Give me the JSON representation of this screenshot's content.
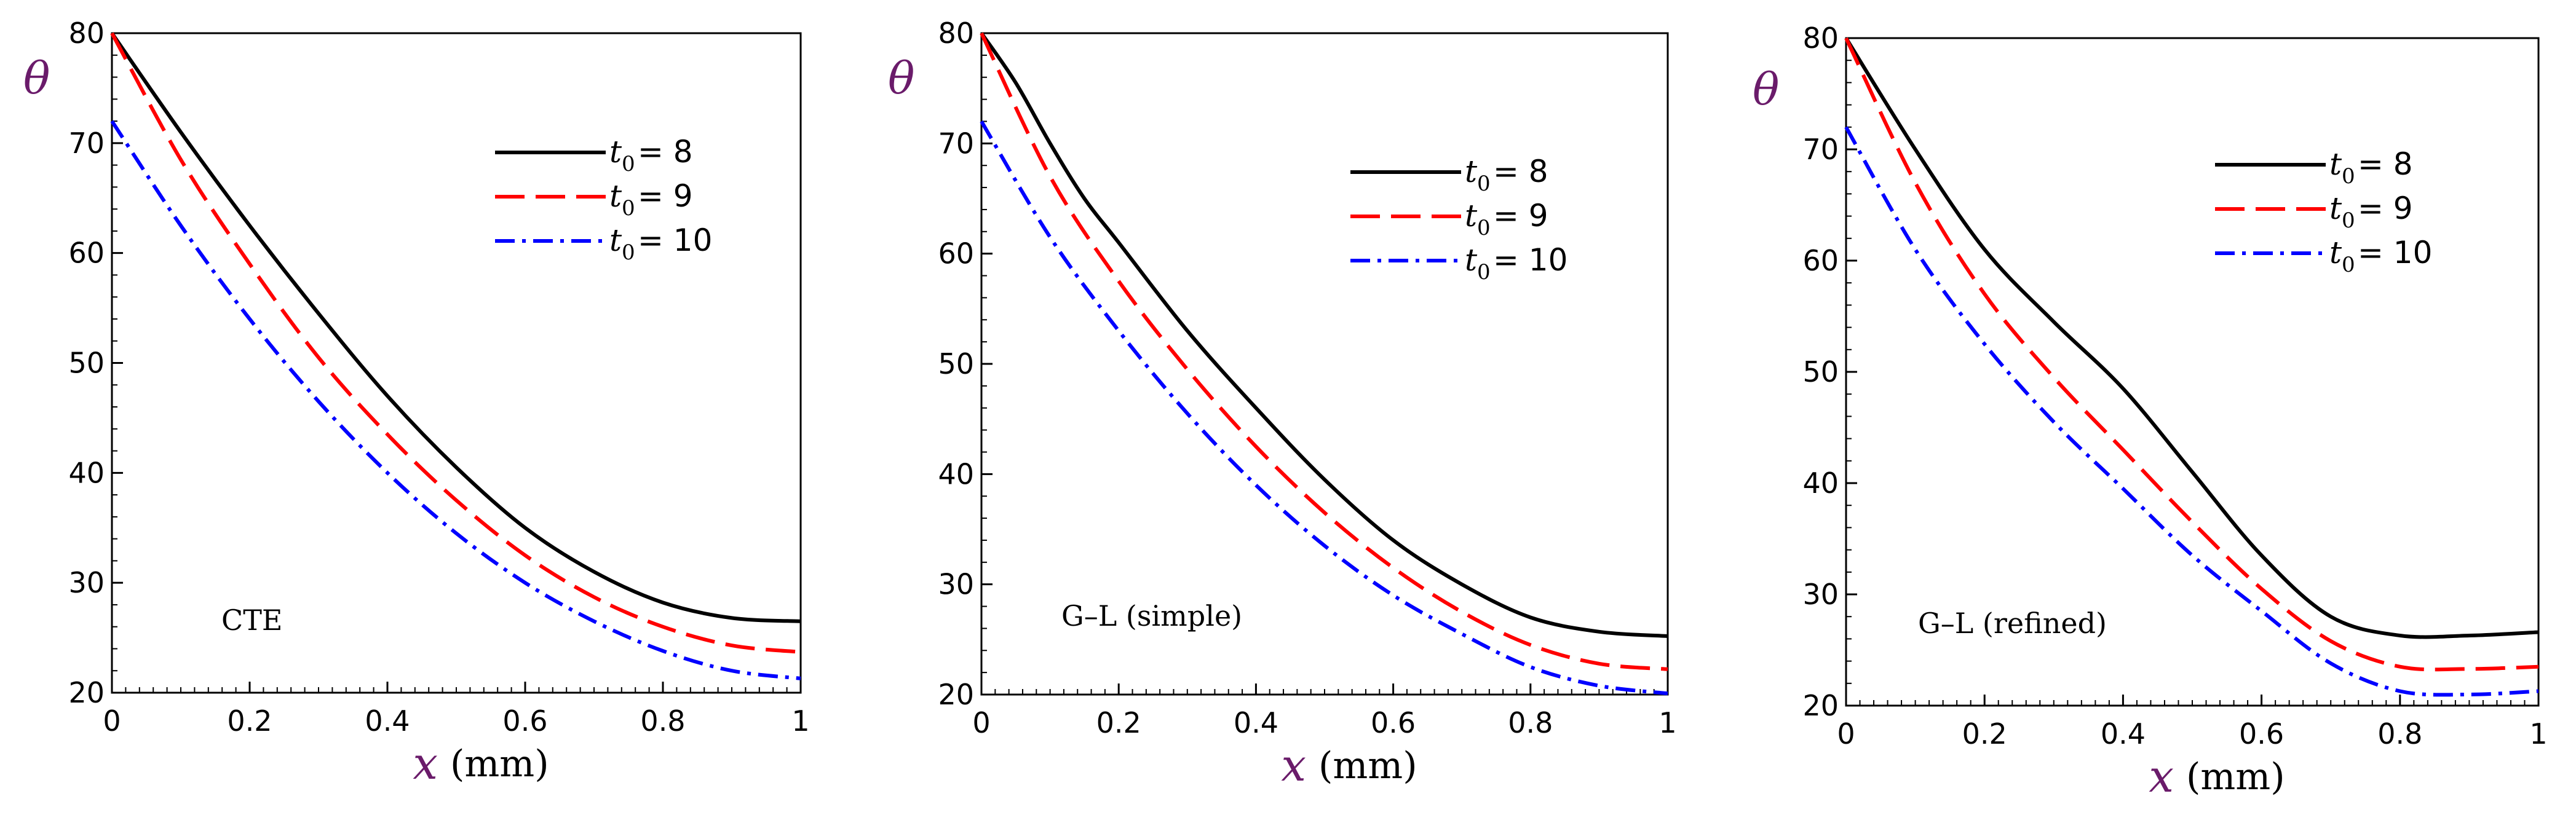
{
  "chart_data": [
    {
      "type": "line",
      "annotation": "CTE",
      "xlabel": {
        "var": "x",
        "unit": "(mm)"
      },
      "ylabel": "θ",
      "xlim": [
        0,
        1
      ],
      "ylim": [
        20,
        80
      ],
      "xticks": [
        "0",
        "0.2",
        "0.4",
        "0.6",
        "0.8",
        "1"
      ],
      "yticks": [
        "20",
        "30",
        "40",
        "50",
        "60",
        "70",
        "80"
      ],
      "legend_position": "top-right",
      "series": [
        {
          "name": "t0 = 8",
          "t": "t",
          "sub": "0",
          "eq": "= 8",
          "color": "#000000",
          "dash": "solid",
          "x": [
            0,
            0.1,
            0.2,
            0.3,
            0.4,
            0.5,
            0.6,
            0.7,
            0.8,
            0.9,
            1.0
          ],
          "y": [
            80,
            71,
            62.5,
            54.5,
            47,
            40.5,
            35,
            31,
            28.2,
            26.8,
            26.5
          ]
        },
        {
          "name": "t0 = 9",
          "t": "t",
          "sub": "0",
          "eq": "= 9",
          "color": "#ff0000",
          "dash": "dash",
          "x": [
            0,
            0.1,
            0.2,
            0.3,
            0.4,
            0.5,
            0.6,
            0.7,
            0.8,
            0.9,
            1.0
          ],
          "y": [
            80,
            68.5,
            59,
            50.5,
            43.5,
            37.5,
            32.5,
            28.7,
            26,
            24.3,
            23.7
          ]
        },
        {
          "name": "t0 = 10",
          "t": "t",
          "sub": "0",
          "eq": "= 10",
          "color": "#0000ff",
          "dash": "dashdot",
          "x": [
            0,
            0.1,
            0.2,
            0.3,
            0.4,
            0.5,
            0.6,
            0.7,
            0.8,
            0.9,
            1.0
          ],
          "y": [
            72,
            62.5,
            54,
            46.5,
            40,
            34.5,
            30,
            26.5,
            23.8,
            22,
            21.3
          ]
        }
      ]
    },
    {
      "type": "line",
      "annotation": "G–L (simple)",
      "xlabel": {
        "var": "x",
        "unit": "(mm)"
      },
      "ylabel": "θ",
      "xlim": [
        0,
        1
      ],
      "ylim": [
        20,
        80
      ],
      "xticks": [
        "0",
        "0.2",
        "0.4",
        "0.6",
        "0.8",
        "1"
      ],
      "yticks": [
        "20",
        "30",
        "40",
        "50",
        "60",
        "70",
        "80"
      ],
      "legend_position": "top-right",
      "series": [
        {
          "name": "t0 = 8",
          "t": "t",
          "sub": "0",
          "eq": "= 8",
          "color": "#000000",
          "dash": "solid",
          "x": [
            0,
            0.05,
            0.1,
            0.15,
            0.2,
            0.3,
            0.4,
            0.5,
            0.6,
            0.7,
            0.8,
            0.9,
            1.0
          ],
          "y": [
            80,
            75.5,
            70,
            65,
            61,
            53,
            46,
            39.5,
            34,
            30,
            27,
            25.7,
            25.3
          ]
        },
        {
          "name": "t0 = 9",
          "t": "t",
          "sub": "0",
          "eq": "= 9",
          "color": "#ff0000",
          "dash": "dash",
          "x": [
            0,
            0.1,
            0.2,
            0.3,
            0.4,
            0.5,
            0.6,
            0.7,
            0.8,
            0.9,
            1.0
          ],
          "y": [
            80,
            67,
            57.5,
            49.5,
            42.5,
            36.5,
            31.5,
            27.5,
            24.5,
            22.8,
            22.3
          ]
        },
        {
          "name": "t0 = 10",
          "t": "t",
          "sub": "0",
          "eq": "= 10",
          "color": "#0000ff",
          "dash": "dashdot",
          "x": [
            0,
            0.1,
            0.2,
            0.3,
            0.4,
            0.5,
            0.6,
            0.7,
            0.8,
            0.9,
            1.0
          ],
          "y": [
            72,
            61.5,
            53,
            45.5,
            39,
            33.5,
            29,
            25.5,
            22.5,
            20.8,
            20.1
          ]
        }
      ]
    },
    {
      "type": "line",
      "annotation": "G–L (refined)",
      "xlabel": {
        "var": "x",
        "unit": "(mm)"
      },
      "ylabel": "θ",
      "xlim": [
        0,
        1
      ],
      "ylim": [
        20,
        80
      ],
      "xticks": [
        "0",
        "0.2",
        "0.4",
        "0.6",
        "0.8",
        "1"
      ],
      "yticks": [
        "20",
        "30",
        "40",
        "50",
        "60",
        "70",
        "80"
      ],
      "legend_position": "top-right",
      "series": [
        {
          "name": "t0 = 8",
          "t": "t",
          "sub": "0",
          "eq": "= 8",
          "color": "#000000",
          "dash": "solid",
          "x": [
            0,
            0.1,
            0.2,
            0.3,
            0.4,
            0.5,
            0.6,
            0.7,
            0.8,
            0.9,
            1.0
          ],
          "y": [
            80,
            70,
            61,
            54.5,
            48.5,
            41,
            33.5,
            28,
            26.3,
            26.3,
            26.6
          ]
        },
        {
          "name": "t0 = 9",
          "t": "t",
          "sub": "0",
          "eq": "= 9",
          "color": "#ff0000",
          "dash": "dash",
          "x": [
            0,
            0.1,
            0.2,
            0.3,
            0.4,
            0.5,
            0.6,
            0.7,
            0.8,
            0.9,
            1.0
          ],
          "y": [
            80,
            67,
            57,
            49.5,
            43,
            36.5,
            30.5,
            25.8,
            23.5,
            23.3,
            23.5
          ]
        },
        {
          "name": "t0 = 10",
          "t": "t",
          "sub": "0",
          "eq": "= 10",
          "color": "#0000ff",
          "dash": "dashdot",
          "x": [
            0,
            0.1,
            0.2,
            0.3,
            0.4,
            0.5,
            0.6,
            0.7,
            0.8,
            0.9,
            1.0
          ],
          "y": [
            72,
            61,
            52.5,
            45.5,
            39.5,
            33.5,
            28.5,
            23.8,
            21.3,
            21,
            21.3
          ]
        }
      ]
    }
  ]
}
